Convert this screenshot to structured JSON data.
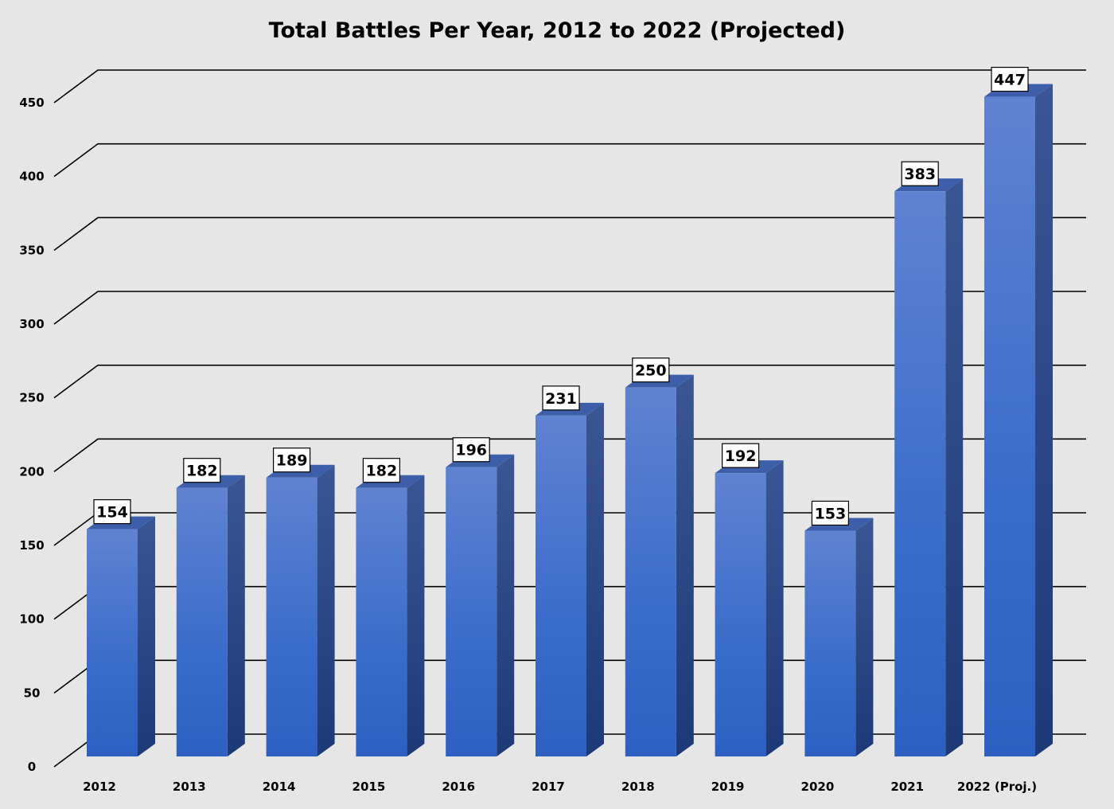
{
  "chart_data": {
    "type": "bar",
    "title": "Total Battles Per Year, 2012 to 2022 (Projected)",
    "xlabel": "",
    "ylabel": "",
    "categories": [
      "2012",
      "2013",
      "2014",
      "2015",
      "2016",
      "2017",
      "2018",
      "2019",
      "2020",
      "2021",
      "2022 (Proj.)"
    ],
    "values": [
      154,
      182,
      189,
      182,
      196,
      231,
      250,
      192,
      153,
      383,
      447
    ],
    "ylim": [
      0,
      450
    ],
    "yticks": [
      0,
      50,
      100,
      150,
      200,
      250,
      300,
      350,
      400,
      450
    ],
    "grid": true,
    "legend": "none",
    "style": "3d-column",
    "colors": {
      "bar_top": "#5f83d0",
      "bar_bottom": "#2d62c6",
      "side_top": "#3a5592",
      "side_bottom": "#1c3878",
      "background": "#e6e6e6"
    }
  }
}
